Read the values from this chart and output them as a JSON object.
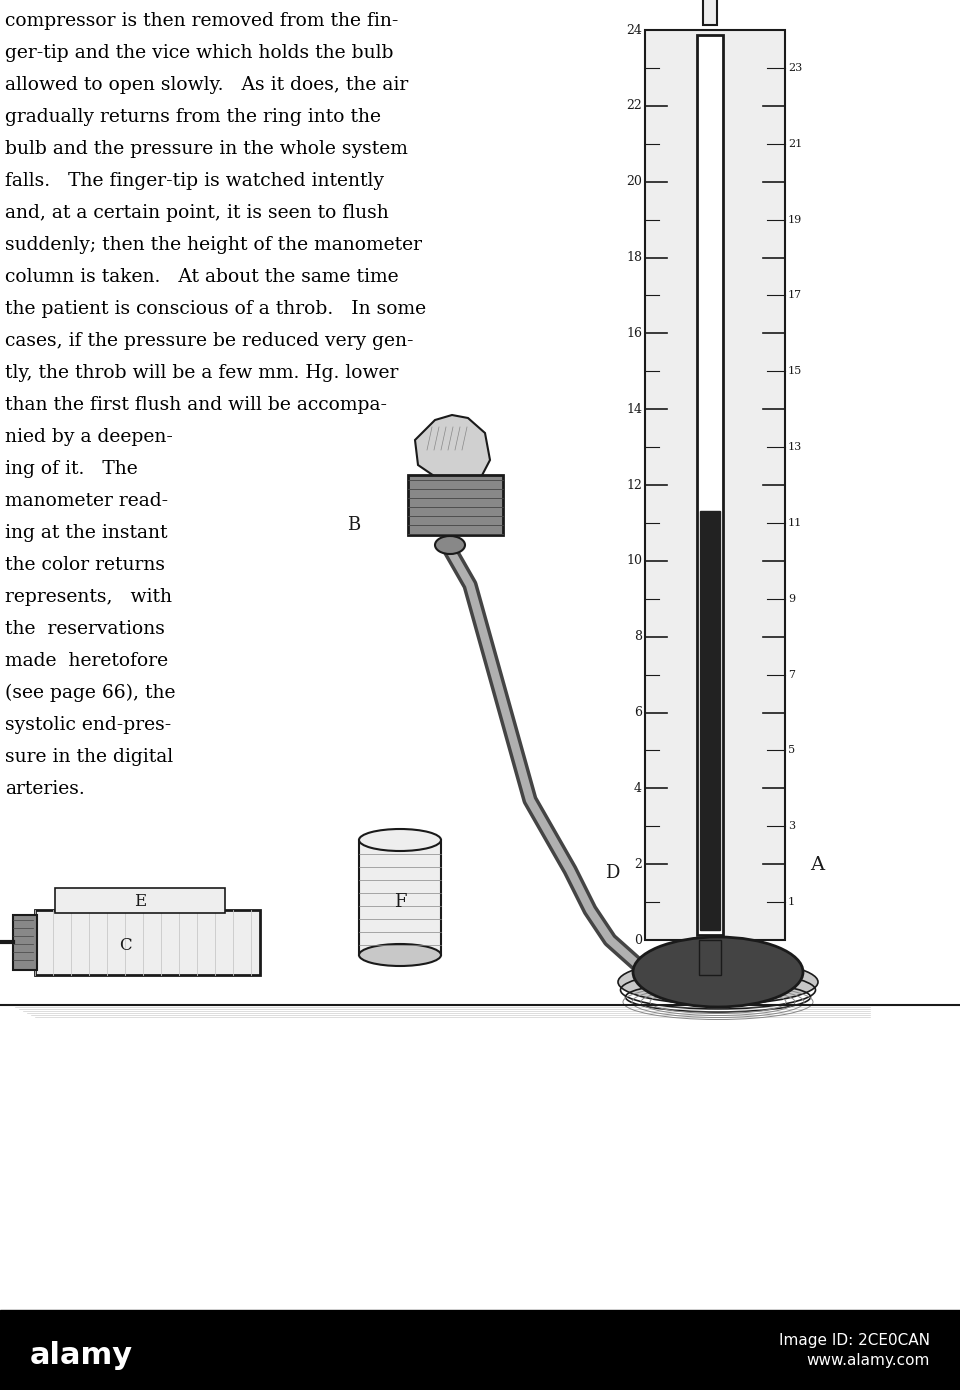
{
  "background_color": "#ffffff",
  "black_bar_color": "#000000",
  "text_lines": [
    "compressor is then removed from the fin-",
    "ger-tip and the vice which holds the bulb",
    "allowed to open slowly.   As it does, the air",
    "gradually returns from the ring into the",
    "bulb and the pressure in the whole system",
    "falls.   The finger-tip is watched intently",
    "and, at a certain point, it is seen to flush",
    "suddenly; then the height of the manometer",
    "column is taken.   At about the same time",
    "the patient is conscious of a throb.   In some",
    "cases, if the pressure be reduced very gen-",
    "tly, the throb will be a few mm. Hg. lower",
    "than the first flush and will be accompa-"
  ],
  "text_lines2": [
    "nied by a deepen-",
    "ing of it.   The",
    "manometer read-",
    "ing at the instant",
    "the color returns",
    "represents,   with",
    "the  reservations",
    "made  heretofore",
    "(see page 66), the",
    "systolic end-pres-",
    "sure in the digital",
    "arteries."
  ],
  "label_A": "A",
  "label_B": "B",
  "label_C": "C",
  "label_D": "D",
  "label_E": "E",
  "label_F": "F",
  "watermark_left": "alamy",
  "watermark_right_line1": "Image ID: 2CE0CAN",
  "watermark_right_line2": "www.alamy.com",
  "scale_numbers_left": [
    "24",
    "22",
    "20",
    "18",
    "16",
    "14",
    "12",
    "10",
    "8",
    "6",
    "4",
    "2",
    "0"
  ],
  "scale_numbers_right": [
    "23",
    "21",
    "19",
    "17",
    "15",
    "13",
    "11",
    "9",
    "7",
    "5",
    "3",
    "1"
  ]
}
